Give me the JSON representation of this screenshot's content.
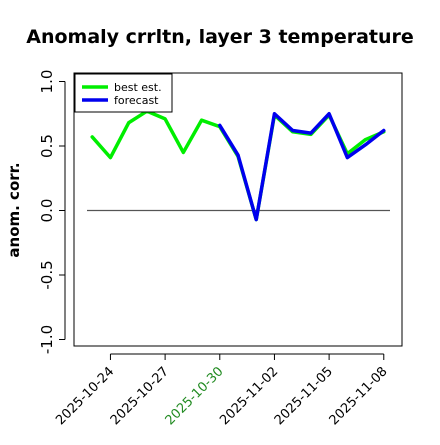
{
  "chart_data": {
    "type": "line",
    "title": "Anomaly crrltn, layer 3 temperature",
    "xlabel": "",
    "ylabel": "anom. corr.",
    "ylim": [
      -1.0,
      1.0
    ],
    "yticks": [
      "-1.0",
      "-0.5",
      "0.0",
      "0.5",
      "1.0"
    ],
    "ytick_values": [
      -1.0,
      -0.5,
      0.0,
      0.5,
      1.0
    ],
    "xticks": [
      "2025-10-24",
      "2025-10-27",
      "2025-10-30",
      "2025-11-02",
      "2025-11-05",
      "2025-11-08"
    ],
    "xtick_colors": [
      "#000000",
      "#000000",
      "#228B22",
      "#000000",
      "#000000",
      "#000000"
    ],
    "x": [
      "2025-10-23",
      "2025-10-24",
      "2025-10-25",
      "2025-10-26",
      "2025-10-27",
      "2025-10-28",
      "2025-10-29",
      "2025-10-30",
      "2025-10-31",
      "2025-11-01",
      "2025-11-02",
      "2025-11-03",
      "2025-11-04",
      "2025-11-05",
      "2025-11-06",
      "2025-11-07",
      "2025-11-08"
    ],
    "xlim": [
      "2025-10-22",
      "2025-11-09"
    ],
    "reference_line": 0.0,
    "grid": false,
    "legend_position": "top-left",
    "series": [
      {
        "name": "best est.",
        "color": "#00ee00",
        "values": [
          0.57,
          0.41,
          0.68,
          0.77,
          0.71,
          0.45,
          0.7,
          0.65,
          0.42,
          -0.07,
          0.74,
          0.61,
          0.59,
          0.74,
          0.44,
          0.55,
          0.61
        ]
      },
      {
        "name": "forecast",
        "color": "#0000ee",
        "values": [
          null,
          null,
          null,
          null,
          null,
          null,
          null,
          0.66,
          0.43,
          -0.07,
          0.75,
          0.62,
          0.6,
          0.75,
          0.41,
          0.51,
          0.62
        ]
      }
    ]
  }
}
